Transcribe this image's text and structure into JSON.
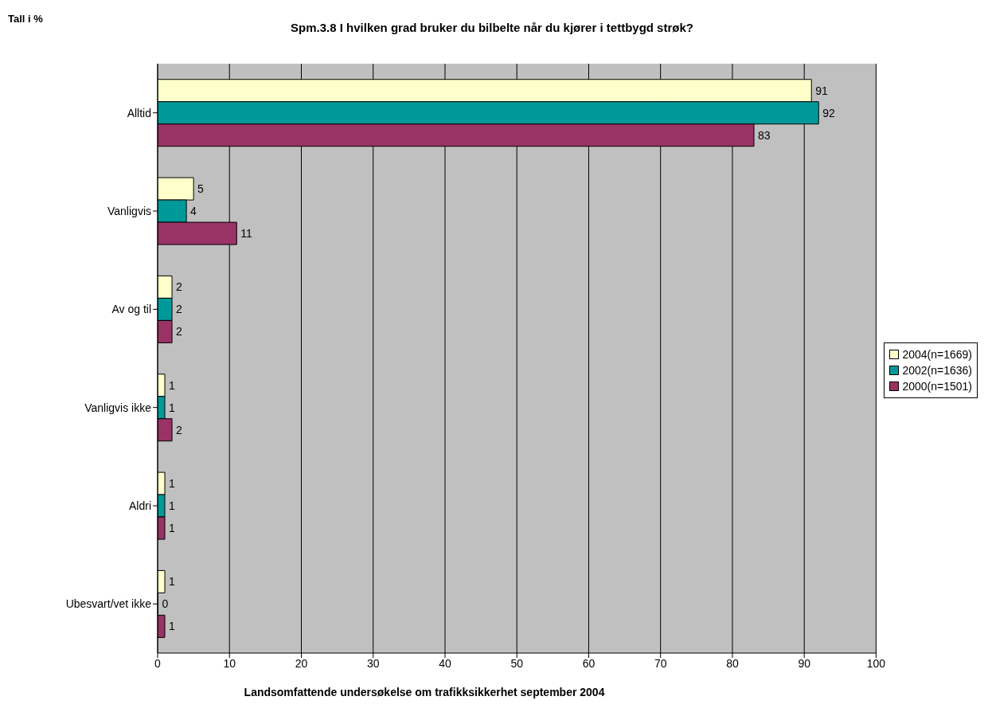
{
  "chart_data": {
    "type": "bar",
    "orientation": "horizontal",
    "title": "Spm.3.8 I hvilken grad bruker du bilbelte når du kjører i tettbygd strøk?",
    "annotations": [
      "Tall i %",
      "Landsomfattende undersøkelse om trafikksikkerhet september 2004"
    ],
    "categories": [
      "Alltid",
      "Vanligvis",
      "Av og til",
      "Vanligvis ikke",
      "Aldri",
      "Ubesvart/vet ikke"
    ],
    "series": [
      {
        "name": "2004(n=1669)",
        "color": "#ffffcc",
        "values": [
          91,
          5,
          2,
          1,
          1,
          1
        ]
      },
      {
        "name": "2002(n=1636)",
        "color": "#009999",
        "values": [
          92,
          4,
          2,
          1,
          1,
          0
        ]
      },
      {
        "name": "2000(n=1501)",
        "color": "#993366",
        "values": [
          83,
          11,
          2,
          2,
          1,
          1
        ]
      }
    ],
    "xlim": [
      0,
      100
    ],
    "xticks": [
      0,
      10,
      20,
      30,
      40,
      50,
      60,
      70,
      80,
      90,
      100
    ],
    "grid": "x",
    "legend": "right",
    "data_labels": true
  }
}
